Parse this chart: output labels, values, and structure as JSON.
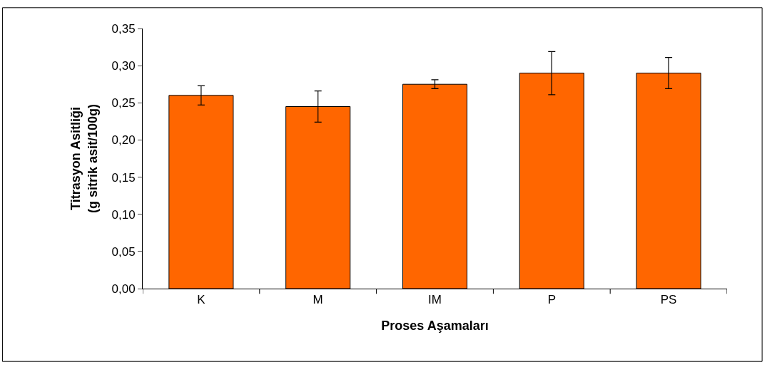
{
  "chart_data": {
    "type": "bar",
    "xlabel": "Proses Aşamaları",
    "ylabel": "Titrasyon Asitliği\n(g sitrik asit/100g)",
    "categories": [
      "K",
      "M",
      "IM",
      "P",
      "PS"
    ],
    "values": [
      0.26,
      0.245,
      0.275,
      0.29,
      0.29
    ],
    "errors": [
      0.013,
      0.021,
      0.006,
      0.029,
      0.021
    ],
    "color": "#ff6600",
    "ylim": [
      0,
      0.35
    ],
    "yticks": [
      {
        "value": 0,
        "label": "0,00"
      },
      {
        "value": 0.05,
        "label": "0,05"
      },
      {
        "value": 0.1,
        "label": "0,10"
      },
      {
        "value": 0.15,
        "label": "0,15"
      },
      {
        "value": 0.2,
        "label": "0,20"
      },
      {
        "value": 0.25,
        "label": "0,25"
      },
      {
        "value": 0.3,
        "label": "0,30"
      },
      {
        "value": 0.35,
        "label": "0,35"
      }
    ],
    "legend": false
  }
}
